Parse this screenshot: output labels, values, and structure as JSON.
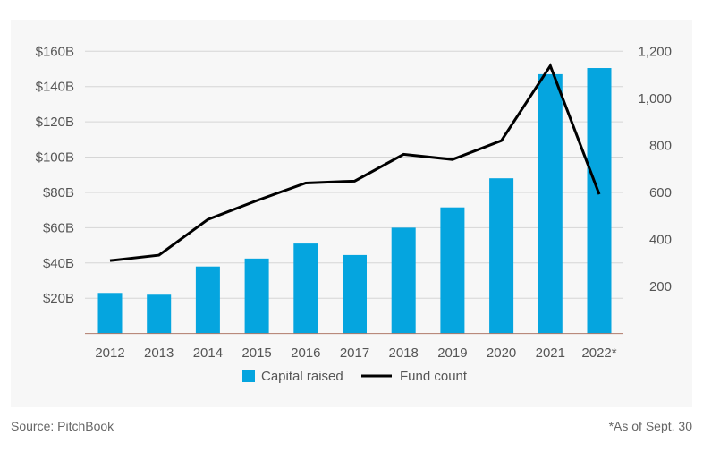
{
  "chart_data": {
    "type": "bar+line",
    "categories": [
      "2012",
      "2013",
      "2014",
      "2015",
      "2016",
      "2017",
      "2018",
      "2019",
      "2020",
      "2021",
      "2022*"
    ],
    "series": [
      {
        "name": "Capital raised",
        "type": "bar",
        "axis": "left",
        "unit": "$B",
        "color": "#05a5df",
        "values": [
          23,
          22,
          38,
          42.5,
          51,
          44.5,
          60,
          71.5,
          88,
          147,
          150.5
        ]
      },
      {
        "name": "Fund count",
        "type": "line",
        "axis": "right",
        "color": "#000000",
        "values": [
          310,
          333,
          485,
          565,
          640,
          648,
          762,
          740,
          820,
          1138,
          592
        ]
      }
    ],
    "left_axis": {
      "ylim": [
        0,
        160
      ],
      "ticks": [
        20,
        40,
        60,
        80,
        100,
        120,
        140,
        160
      ],
      "tick_labels": [
        "$20B",
        "$40B",
        "$60B",
        "$80B",
        "$100B",
        "$120B",
        "$140B",
        "$160B"
      ]
    },
    "right_axis": {
      "ylim": [
        0,
        1200
      ],
      "ticks": [
        200,
        400,
        600,
        800,
        1000,
        1200
      ],
      "tick_labels": [
        "200",
        "400",
        "600",
        "800",
        "1,000",
        "1,200"
      ]
    },
    "grid": true,
    "legend": "bottom-center"
  },
  "footer": {
    "source": "Source: PitchBook",
    "note": "*As of Sept. 30"
  }
}
